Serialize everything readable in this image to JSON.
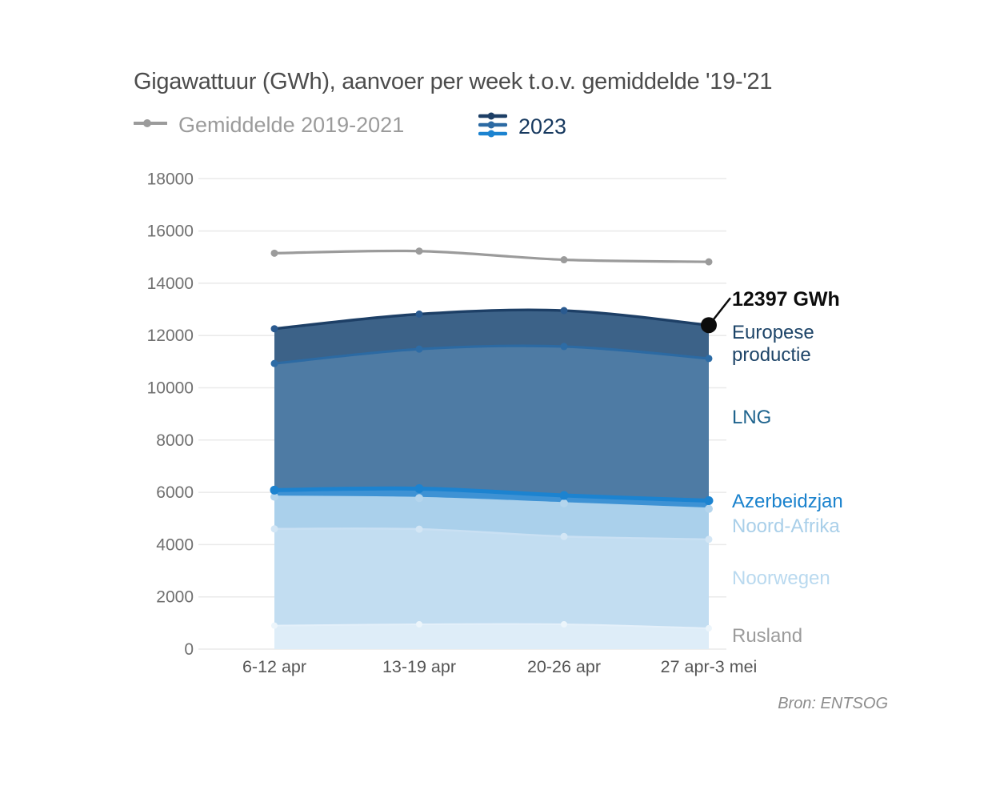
{
  "title": "Gigawattuur (GWh), aanvoer per week t.o.v. gemiddelde '19-'21",
  "legend": {
    "average": {
      "label": "Gemiddelde 2019-2021",
      "color": "#9b9b9b"
    },
    "year2023": {
      "label": "2023",
      "color": "#17395f",
      "icon_colors": [
        "#1d3f66",
        "#2c6aa3",
        "#1c83d0"
      ]
    }
  },
  "annotation": {
    "text": "12397 GWh",
    "value": 12397,
    "color": "#0c0c0c"
  },
  "source": "Bron: ENTSOG",
  "chart_data": {
    "type": "area",
    "stacked": true,
    "title": "Gigawattuur (GWh), aanvoer per week t.o.v. gemiddelde '19-'21",
    "categories": [
      "6-12 apr",
      "13-19 apr",
      "20-26 apr",
      "27 apr-3 mei"
    ],
    "series": [
      {
        "name": "Rusland",
        "values": [
          900,
          950,
          950,
          800
        ],
        "fill": "#deedf8",
        "stroke": "#e4f0fa",
        "dot": "#ecf5fb",
        "label_color": "#9c9c9c",
        "stroke_width": 2,
        "dot_r": 4
      },
      {
        "name": "Noorwegen",
        "values": [
          3700,
          3640,
          3360,
          3400
        ],
        "fill": "#c2ddf1",
        "stroke": "#c9e0f3",
        "dot": "#d3e6f5",
        "label_color": "#b9d9ef",
        "stroke_width": 2.5,
        "dot_r": 4.5
      },
      {
        "name": "Noord-Afrika",
        "values": [
          1230,
          1190,
          1270,
          1170
        ],
        "fill": "#aad0eb",
        "stroke": "#aad0eb",
        "dot": "#b4d5ed",
        "label_color": "#a9cfe9",
        "stroke_width": 3,
        "dot_r": 5
      },
      {
        "name": "Azerbeidzjan",
        "values": [
          255,
          360,
          300,
          310
        ],
        "fill": "#3e92d4",
        "stroke": "#1c83d0",
        "dot": "#1c83d0",
        "label_color": "#1a82cd",
        "stroke_width": 5,
        "dot_r": 5.5
      },
      {
        "name": "LNG",
        "values": [
          4845,
          5340,
          5700,
          5440
        ],
        "fill": "#4e7ba4",
        "stroke": "#2c6aa3",
        "dot": "#2d6ca6",
        "label_color": "#1f648e",
        "stroke_width": 3.2,
        "dot_r": 4.5
      },
      {
        "name": "Europese productie",
        "values": [
          1330,
          1340,
          1375,
          1277
        ],
        "fill": "#3c6288",
        "stroke": "#1d3f66",
        "dot": "#2a5a8f",
        "label_color": "#1d4468",
        "stroke_width": 3.4,
        "dot_r": 4.5
      }
    ],
    "totals": [
      12260,
      12820,
      12955,
      12397
    ],
    "average_line": {
      "name": "Gemiddelde 2019-2021",
      "values": [
        15150,
        15230,
        14900,
        14820
      ],
      "color": "#9b9b9b"
    },
    "xlabel": "",
    "ylabel": "",
    "ylim": [
      0,
      18000
    ],
    "ytick_step": 2000,
    "grid": true,
    "legend_position": "top",
    "annotation_point": {
      "category_index": 3,
      "text": "12397 GWh"
    }
  },
  "axis_style": {
    "tick_color": "#707070",
    "x_label_color": "#555555",
    "grid_color": "#eaeaea"
  }
}
